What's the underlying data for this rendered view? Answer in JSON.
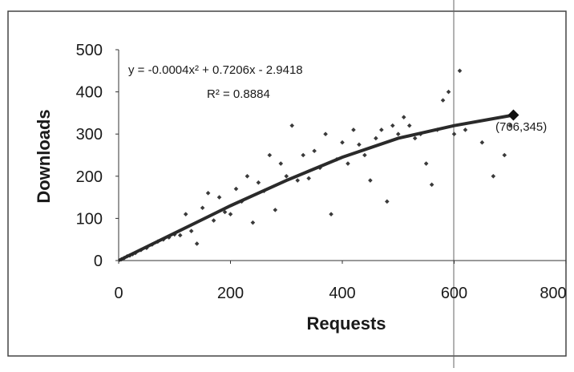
{
  "chart_data": {
    "type": "scatter",
    "xlabel": "Requests",
    "ylabel": "Downloads",
    "equation": "y = -0.0004x² + 0.7206x - 2.9418",
    "r_squared": "R² = 0.8884",
    "annotation": "(706,345)",
    "xlim": [
      0,
      800
    ],
    "xticks": [
      0,
      200,
      400,
      600,
      800
    ],
    "ylim": [
      0,
      500
    ],
    "yticks": [
      0,
      100,
      200,
      300,
      400,
      500
    ],
    "series": [
      {
        "type": "scatter",
        "color": "#3a3a3a",
        "x": [
          5,
          10,
          15,
          20,
          25,
          30,
          40,
          50,
          60,
          70,
          80,
          90,
          100,
          110,
          120,
          130,
          140,
          150,
          160,
          170,
          180,
          190,
          200,
          210,
          220,
          230,
          240,
          250,
          260,
          270,
          280,
          290,
          300,
          310,
          320,
          330,
          340,
          350,
          360,
          370,
          380,
          390,
          400,
          410,
          420,
          430,
          440,
          450,
          460,
          470,
          480,
          490,
          500,
          510,
          520,
          530,
          540,
          550,
          560,
          570,
          580,
          590,
          600,
          610,
          620,
          650,
          670,
          690,
          700
        ],
        "values": [
          3,
          6,
          10,
          12,
          15,
          18,
          25,
          30,
          38,
          45,
          50,
          55,
          62,
          60,
          110,
          70,
          40,
          125,
          160,
          95,
          150,
          115,
          110,
          170,
          140,
          200,
          90,
          185,
          165,
          250,
          120,
          230,
          200,
          320,
          190,
          250,
          195,
          260,
          220,
          300,
          110,
          240,
          280,
          230,
          310,
          275,
          250,
          190,
          290,
          310,
          140,
          320,
          300,
          340,
          320,
          290,
          300,
          230,
          180,
          310,
          380,
          400,
          300,
          450,
          310,
          280,
          200,
          250,
          320
        ]
      },
      {
        "type": "line",
        "color": "#2a2a2a",
        "x": [
          0,
          100,
          200,
          300,
          400,
          500,
          600,
          706
        ],
        "values": [
          0,
          65,
          130,
          190,
          245,
          290,
          320,
          345
        ]
      },
      {
        "type": "scatter",
        "color": "#111111",
        "size": "large",
        "x": [
          706
        ],
        "values": [
          345
        ]
      }
    ]
  }
}
